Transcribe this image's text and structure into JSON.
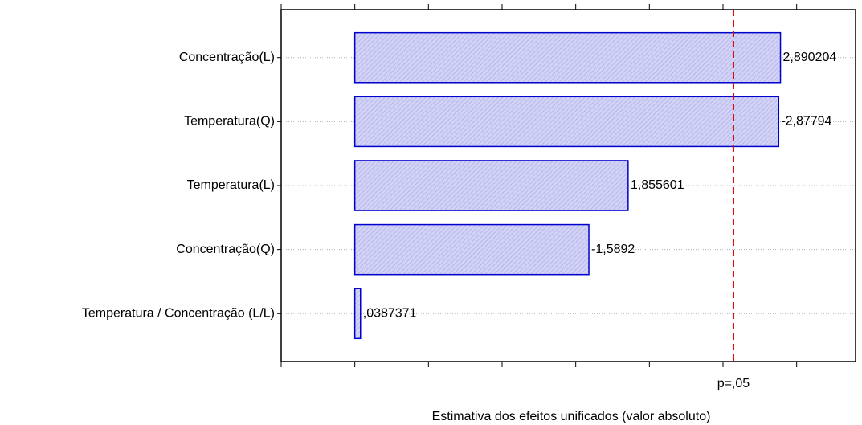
{
  "chart_data": {
    "type": "bar",
    "orientation": "horizontal",
    "x_label": "Estimativa dos efeitos unificados (valor absoluto)",
    "categories": [
      "Concentração(L)",
      "Temperatura(Q)",
      "Temperatura(L)",
      "Concentração(Q)",
      "Temperatura / Concentração (L/L)"
    ],
    "values": [
      2.890204,
      2.87794,
      1.855601,
      1.5892,
      0.0387371
    ],
    "value_labels": [
      "2,890204",
      "-2,87794",
      "1,855601",
      "-1,5892",
      ",0387371"
    ],
    "color": "#0000cc",
    "fill_color": "#c8c8f2",
    "xlim": [
      -0.5,
      3.4
    ],
    "xticks": [
      -0.5,
      0,
      0.5,
      1,
      1.5,
      2,
      2.5,
      3
    ],
    "grid": true,
    "reference_line": {
      "value": 2.570582,
      "label": "p=,05",
      "color": "#e00000"
    }
  }
}
